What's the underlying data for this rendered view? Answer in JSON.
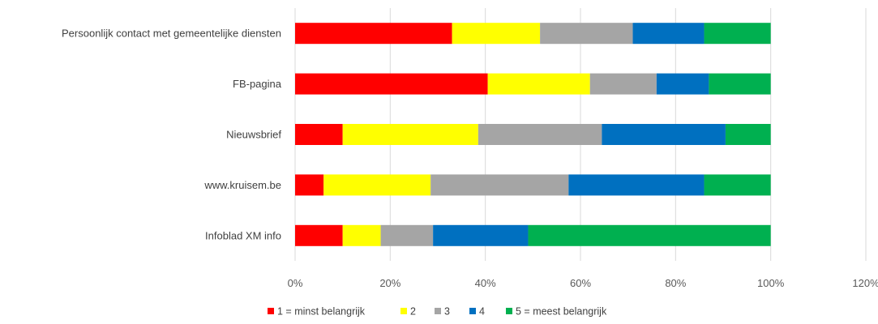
{
  "chart_data": {
    "type": "bar",
    "orientation": "horizontal",
    "stacked": true,
    "categories": [
      "Persoonlijk contact met gemeentelijke diensten",
      "FB-pagina",
      "Nieuwsbrief",
      "www.kruisem.be",
      "Infoblad XM info"
    ],
    "series": [
      {
        "name": "1 = minst belangrijk",
        "color": "#ff0000",
        "values": [
          33,
          40.5,
          10,
          6,
          10
        ]
      },
      {
        "name": "2",
        "color": "#ffff00",
        "values": [
          18.5,
          21.5,
          28.5,
          22.5,
          8
        ]
      },
      {
        "name": "3",
        "color": "#a5a5a5",
        "values": [
          19.5,
          14,
          26,
          29,
          11
        ]
      },
      {
        "name": "4",
        "color": "#0070c0",
        "values": [
          15,
          11,
          26,
          28.5,
          20
        ]
      },
      {
        "name": "5 = meest belangrijk",
        "color": "#00b050",
        "values": [
          14,
          13,
          9.5,
          14,
          51
        ]
      }
    ],
    "xlim": [
      0,
      120
    ],
    "xticks": [
      0,
      20,
      40,
      60,
      80,
      100,
      120
    ],
    "xtick_labels": [
      "0%",
      "20%",
      "40%",
      "60%",
      "80%",
      "100%",
      "120%"
    ],
    "grid": true,
    "legend_position": "bottom",
    "title": "",
    "xlabel": "",
    "ylabel": ""
  }
}
